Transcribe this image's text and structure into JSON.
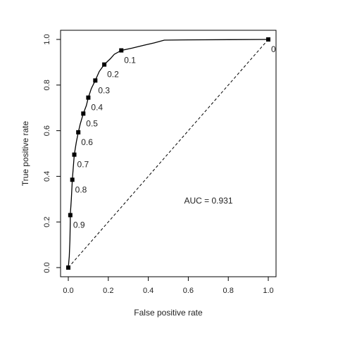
{
  "chart_data": {
    "type": "line",
    "xlabel": "False positive rate",
    "ylabel": "True positive rate",
    "xlim": [
      0,
      1
    ],
    "ylim": [
      0,
      1
    ],
    "x_ticks": [
      "0.0",
      "0.2",
      "0.4",
      "0.6",
      "0.8",
      "1.0"
    ],
    "y_ticks": [
      "0.0",
      "0.2",
      "0.4",
      "0.6",
      "0.8",
      "1.0"
    ],
    "grid": false,
    "auc_label": "AUC = 0.931",
    "roc_curve": [
      [
        0.0,
        0.0
      ],
      [
        0.005,
        0.05
      ],
      [
        0.008,
        0.12
      ],
      [
        0.01,
        0.2
      ],
      [
        0.01,
        0.23
      ],
      [
        0.015,
        0.3
      ],
      [
        0.02,
        0.385
      ],
      [
        0.025,
        0.44
      ],
      [
        0.03,
        0.495
      ],
      [
        0.04,
        0.55
      ],
      [
        0.05,
        0.593
      ],
      [
        0.06,
        0.63
      ],
      [
        0.075,
        0.675
      ],
      [
        0.09,
        0.71
      ],
      [
        0.1,
        0.745
      ],
      [
        0.115,
        0.785
      ],
      [
        0.135,
        0.82
      ],
      [
        0.155,
        0.86
      ],
      [
        0.18,
        0.89
      ],
      [
        0.21,
        0.915
      ],
      [
        0.23,
        0.935
      ],
      [
        0.265,
        0.952
      ],
      [
        0.32,
        0.962
      ],
      [
        0.38,
        0.975
      ],
      [
        0.43,
        0.985
      ],
      [
        0.48,
        0.997
      ],
      [
        0.6,
        0.998
      ],
      [
        0.8,
        0.999
      ],
      [
        1.0,
        1.0
      ]
    ],
    "diagonal": [
      [
        0.0,
        0.0
      ],
      [
        1.0,
        1.0
      ]
    ],
    "thresholds": [
      {
        "label": "0",
        "fpr": 1.0,
        "tpr": 1.0
      },
      {
        "label": "0.1",
        "fpr": 0.265,
        "tpr": 0.952
      },
      {
        "label": "0.2",
        "fpr": 0.18,
        "tpr": 0.89
      },
      {
        "label": "0.3",
        "fpr": 0.135,
        "tpr": 0.82
      },
      {
        "label": "0.4",
        "fpr": 0.1,
        "tpr": 0.745
      },
      {
        "label": "0.5",
        "fpr": 0.075,
        "tpr": 0.675
      },
      {
        "label": "0.6",
        "fpr": 0.05,
        "tpr": 0.593
      },
      {
        "label": "0.7",
        "fpr": 0.03,
        "tpr": 0.495
      },
      {
        "label": "0.8",
        "fpr": 0.02,
        "tpr": 0.385
      },
      {
        "label": "0.9",
        "fpr": 0.01,
        "tpr": 0.23
      },
      {
        "label": "",
        "fpr": 0.0,
        "tpr": 0.0
      }
    ],
    "colors": {
      "line": "#000000",
      "axis": "#000000",
      "text": "#222222"
    }
  }
}
